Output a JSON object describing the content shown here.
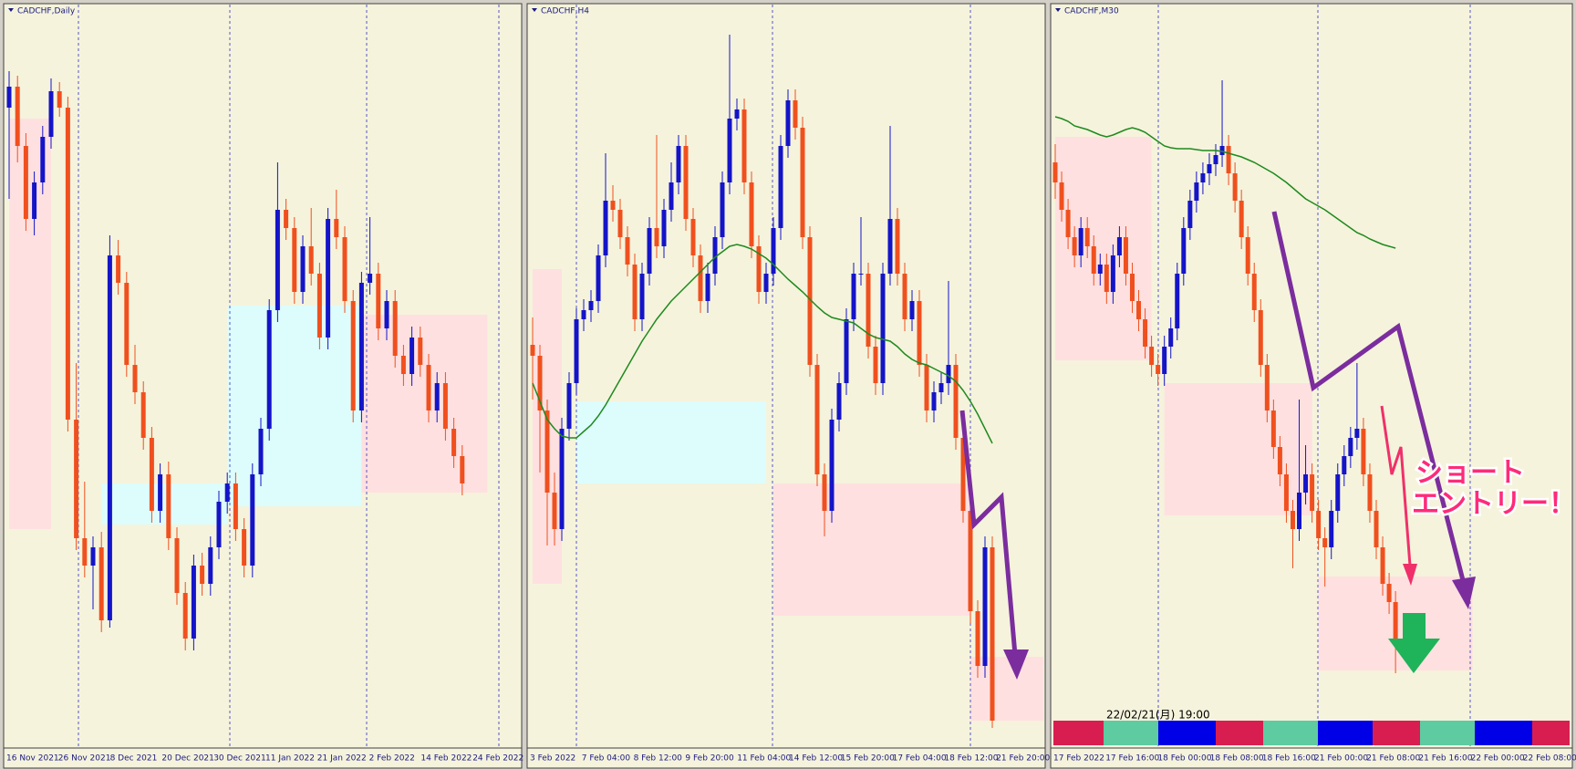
{
  "chart_data": [
    {
      "type": "candlestick",
      "title": "CADCHF,Daily",
      "ylim": [
        0,
        800
      ],
      "up_color": "#1414c8",
      "down_color": "#f0501e",
      "x_labels": [
        "16 Nov 2021",
        "26 Nov 2021",
        "8 Dec 2021",
        "20 Dec 2021",
        "30 Dec 2021",
        "11 Jan 2022",
        "21 Jan 2022",
        "2 Feb 2022",
        "14 Feb 2022",
        "24 Feb 2022"
      ],
      "zones": [
        {
          "start": 0,
          "end": 5,
          "low": 238,
          "high": 688,
          "color": "#ffe0e0"
        },
        {
          "start": 11,
          "end": 26,
          "low": 243,
          "high": 288,
          "color": "#ddfcfc"
        },
        {
          "start": 26,
          "end": 42,
          "low": 263,
          "high": 483,
          "color": "#ddfcfc"
        },
        {
          "start": 42,
          "end": 57,
          "low": 278,
          "high": 473,
          "color": "#ffe0e0"
        }
      ],
      "candles": [
        [
          700,
          740,
          600,
          723
        ],
        [
          723,
          735,
          640,
          658
        ],
        [
          658,
          672,
          565,
          578
        ],
        [
          578,
          630,
          560,
          618
        ],
        [
          618,
          680,
          605,
          668
        ],
        [
          668,
          732,
          655,
          718
        ],
        [
          718,
          728,
          690,
          700
        ],
        [
          700,
          712,
          345,
          358
        ],
        [
          358,
          420,
          215,
          228
        ],
        [
          228,
          290,
          185,
          198
        ],
        [
          198,
          230,
          150,
          218
        ],
        [
          218,
          235,
          125,
          138
        ],
        [
          138,
          560,
          130,
          538
        ],
        [
          538,
          555,
          495,
          508
        ],
        [
          508,
          520,
          405,
          418
        ],
        [
          418,
          440,
          375,
          388
        ],
        [
          388,
          400,
          325,
          338
        ],
        [
          338,
          350,
          245,
          258
        ],
        [
          258,
          310,
          245,
          298
        ],
        [
          298,
          312,
          215,
          228
        ],
        [
          228,
          240,
          155,
          168
        ],
        [
          168,
          180,
          105,
          118
        ],
        [
          118,
          210,
          105,
          198
        ],
        [
          198,
          212,
          165,
          178
        ],
        [
          178,
          230,
          165,
          218
        ],
        [
          218,
          280,
          205,
          268
        ],
        [
          268,
          300,
          255,
          288
        ],
        [
          288,
          300,
          225,
          238
        ],
        [
          238,
          250,
          185,
          198
        ],
        [
          198,
          310,
          185,
          298
        ],
        [
          298,
          360,
          285,
          348
        ],
        [
          348,
          490,
          335,
          478
        ],
        [
          478,
          640,
          465,
          588
        ],
        [
          588,
          600,
          555,
          568
        ],
        [
          568,
          580,
          485,
          498
        ],
        [
          498,
          560,
          485,
          548
        ],
        [
          548,
          590,
          505,
          518
        ],
        [
          518,
          530,
          435,
          448
        ],
        [
          448,
          590,
          435,
          578
        ],
        [
          578,
          610,
          545,
          558
        ],
        [
          558,
          570,
          475,
          488
        ],
        [
          488,
          500,
          355,
          368
        ],
        [
          368,
          520,
          355,
          508
        ],
        [
          508,
          580,
          495,
          518
        ],
        [
          518,
          530,
          445,
          458
        ],
        [
          458,
          500,
          445,
          488
        ],
        [
          488,
          500,
          415,
          428
        ],
        [
          428,
          440,
          395,
          408
        ],
        [
          408,
          460,
          395,
          448
        ],
        [
          448,
          460,
          405,
          418
        ],
        [
          418,
          430,
          355,
          368
        ],
        [
          368,
          410,
          355,
          398
        ],
        [
          398,
          410,
          335,
          348
        ],
        [
          348,
          360,
          305,
          318
        ],
        [
          318,
          330,
          275,
          288
        ]
      ]
    },
    {
      "type": "candlestick",
      "title": "CADCHF,H4",
      "ylim": [
        0,
        800
      ],
      "up_color": "#1414c8",
      "down_color": "#f0501e",
      "ma_color": "#1e8a1e",
      "x_labels": [
        "3 Feb 2022",
        "7 Feb 04:00",
        "8 Feb 12:00",
        "9 Feb 20:00",
        "11 Feb 04:00",
        "14 Feb 12:00",
        "15 Feb 20:00",
        "17 Feb 04:00",
        "18 Feb 12:00",
        "21 Feb 20:00"
      ],
      "zones": [
        {
          "start": 0,
          "end": 4,
          "low": 178,
          "high": 523,
          "color": "#ffe0e0"
        },
        {
          "start": 6,
          "end": 32,
          "low": 288,
          "high": 378,
          "color": "#ddfcfc"
        },
        {
          "start": 33,
          "end": 60,
          "low": 143,
          "high": 288,
          "color": "#ffe0e0"
        },
        {
          "start": 60,
          "end": 70,
          "low": 28,
          "high": 98,
          "color": "#ffe0e0"
        }
      ],
      "candles": [
        [
          440,
          470,
          380,
          428
        ],
        [
          428,
          440,
          300,
          368
        ],
        [
          368,
          380,
          220,
          278
        ],
        [
          278,
          300,
          220,
          238
        ],
        [
          238,
          360,
          225,
          348
        ],
        [
          348,
          410,
          335,
          398
        ],
        [
          398,
          480,
          385,
          468
        ],
        [
          468,
          490,
          455,
          478
        ],
        [
          478,
          500,
          465,
          488
        ],
        [
          488,
          550,
          475,
          538
        ],
        [
          538,
          650,
          525,
          598
        ],
        [
          598,
          615,
          575,
          588
        ],
        [
          588,
          600,
          545,
          558
        ],
        [
          558,
          570,
          515,
          528
        ],
        [
          528,
          540,
          455,
          468
        ],
        [
          468,
          530,
          455,
          518
        ],
        [
          518,
          580,
          505,
          568
        ],
        [
          568,
          670,
          535,
          548
        ],
        [
          548,
          600,
          535,
          588
        ],
        [
          588,
          640,
          575,
          618
        ],
        [
          618,
          670,
          605,
          658
        ],
        [
          658,
          670,
          565,
          578
        ],
        [
          578,
          590,
          525,
          538
        ],
        [
          538,
          550,
          475,
          488
        ],
        [
          488,
          530,
          475,
          518
        ],
        [
          518,
          570,
          505,
          558
        ],
        [
          558,
          630,
          545,
          618
        ],
        [
          618,
          780,
          605,
          688
        ],
        [
          688,
          710,
          675,
          698
        ],
        [
          698,
          710,
          605,
          618
        ],
        [
          618,
          630,
          535,
          548
        ],
        [
          548,
          560,
          485,
          498
        ],
        [
          498,
          530,
          485,
          518
        ],
        [
          518,
          580,
          505,
          568
        ],
        [
          568,
          670,
          555,
          658
        ],
        [
          658,
          720,
          645,
          708
        ],
        [
          708,
          720,
          665,
          678
        ],
        [
          678,
          690,
          545,
          558
        ],
        [
          558,
          570,
          405,
          418
        ],
        [
          418,
          430,
          285,
          298
        ],
        [
          298,
          310,
          230,
          258
        ],
        [
          258,
          370,
          245,
          358
        ],
        [
          358,
          410,
          345,
          398
        ],
        [
          398,
          480,
          385,
          468
        ],
        [
          468,
          530,
          455,
          518
        ],
        [
          518,
          580,
          505,
          518
        ],
        [
          518,
          530,
          425,
          438
        ],
        [
          438,
          450,
          385,
          398
        ],
        [
          398,
          530,
          385,
          518
        ],
        [
          518,
          680,
          505,
          578
        ],
        [
          578,
          590,
          505,
          518
        ],
        [
          518,
          530,
          455,
          468
        ],
        [
          468,
          500,
          455,
          488
        ],
        [
          488,
          500,
          405,
          418
        ],
        [
          418,
          430,
          355,
          368
        ],
        [
          368,
          400,
          355,
          388
        ],
        [
          388,
          410,
          375,
          398
        ],
        [
          398,
          510,
          385,
          418
        ],
        [
          418,
          430,
          325,
          338
        ],
        [
          338,
          350,
          245,
          258
        ],
        [
          258,
          270,
          135,
          148
        ],
        [
          148,
          160,
          75,
          88
        ],
        [
          88,
          230,
          75,
          218
        ],
        [
          218,
          230,
          20,
          28
        ]
      ],
      "ma": [
        398,
        378,
        358,
        348,
        340,
        338,
        338,
        345,
        352,
        362,
        374,
        388,
        402,
        416,
        430,
        444,
        456,
        468,
        478,
        488,
        496,
        504,
        512,
        520,
        528,
        536,
        542,
        548,
        550,
        548,
        545,
        540,
        535,
        528,
        520,
        512,
        505,
        498,
        490,
        482,
        475,
        470,
        468,
        466,
        464,
        458,
        452,
        448,
        446,
        444,
        438,
        430,
        424,
        420,
        418,
        414,
        410,
        406,
        400,
        390,
        378,
        364,
        348,
        332
      ]
    },
    {
      "type": "candlestick",
      "title": "CADCHF,M30",
      "ylim": [
        0,
        800
      ],
      "up_color": "#1414c8",
      "down_color": "#f0501e",
      "ma_color": "#1e8a1e",
      "x_labels": [
        "17 Feb 2022",
        "17 Feb 16:00",
        "18 Feb 00:00",
        "18 Feb 08:00",
        "18 Feb 16:00",
        "21 Feb 00:00",
        "21 Feb 08:00",
        "21 Feb 16:00",
        "22 Feb 00:00",
        "22 Feb 08:00"
      ],
      "zones": [
        {
          "start": 0,
          "end": 15,
          "low": 423,
          "high": 668,
          "color": "#ffe0e0"
        },
        {
          "start": 17,
          "end": 40,
          "low": 253,
          "high": 398,
          "color": "#ffe0e0"
        },
        {
          "start": 41,
          "end": 65,
          "low": 83,
          "high": 186,
          "color": "#ffe0e0"
        }
      ],
      "candles": [
        [
          640,
          660,
          600,
          618
        ],
        [
          618,
          630,
          575,
          588
        ],
        [
          588,
          600,
          545,
          558
        ],
        [
          558,
          570,
          525,
          538
        ],
        [
          538,
          580,
          525,
          568
        ],
        [
          568,
          580,
          535,
          548
        ],
        [
          548,
          560,
          505,
          518
        ],
        [
          518,
          540,
          505,
          528
        ],
        [
          528,
          540,
          485,
          498
        ],
        [
          498,
          550,
          485,
          538
        ],
        [
          538,
          570,
          525,
          558
        ],
        [
          558,
          570,
          505,
          518
        ],
        [
          518,
          530,
          475,
          488
        ],
        [
          488,
          500,
          455,
          468
        ],
        [
          468,
          480,
          425,
          438
        ],
        [
          438,
          450,
          405,
          418
        ],
        [
          418,
          430,
          395,
          408
        ],
        [
          408,
          450,
          395,
          438
        ],
        [
          438,
          470,
          425,
          458
        ],
        [
          458,
          530,
          445,
          518
        ],
        [
          518,
          580,
          505,
          568
        ],
        [
          568,
          610,
          555,
          598
        ],
        [
          598,
          630,
          585,
          618
        ],
        [
          618,
          640,
          605,
          628
        ],
        [
          628,
          650,
          615,
          638
        ],
        [
          638,
          660,
          625,
          648
        ],
        [
          648,
          730,
          635,
          658
        ],
        [
          658,
          670,
          615,
          628
        ],
        [
          628,
          640,
          585,
          598
        ],
        [
          598,
          610,
          545,
          558
        ],
        [
          558,
          570,
          505,
          518
        ],
        [
          518,
          530,
          465,
          478
        ],
        [
          478,
          490,
          405,
          418
        ],
        [
          418,
          430,
          355,
          368
        ],
        [
          368,
          380,
          315,
          328
        ],
        [
          328,
          340,
          285,
          298
        ],
        [
          298,
          310,
          245,
          258
        ],
        [
          258,
          270,
          195,
          238
        ],
        [
          238,
          380,
          225,
          278
        ],
        [
          278,
          330,
          265,
          298
        ],
        [
          298,
          310,
          245,
          258
        ],
        [
          258,
          270,
          215,
          228
        ],
        [
          228,
          240,
          175,
          218
        ],
        [
          218,
          270,
          205,
          258
        ],
        [
          258,
          310,
          245,
          298
        ],
        [
          298,
          330,
          285,
          318
        ],
        [
          318,
          350,
          305,
          338
        ],
        [
          338,
          420,
          325,
          348
        ],
        [
          348,
          360,
          285,
          298
        ],
        [
          298,
          310,
          245,
          258
        ],
        [
          258,
          270,
          205,
          218
        ],
        [
          218,
          230,
          165,
          178
        ],
        [
          178,
          190,
          145,
          158
        ],
        [
          158,
          170,
          80,
          118
        ]
      ],
      "ma": [
        690,
        688,
        685,
        680,
        678,
        676,
        673,
        670,
        668,
        670,
        673,
        676,
        678,
        676,
        673,
        668,
        663,
        658,
        656,
        655,
        655,
        655,
        654,
        653,
        653,
        653,
        652,
        650,
        648,
        646,
        643,
        640,
        636,
        632,
        628,
        623,
        618,
        612,
        606,
        600,
        596,
        592,
        588,
        583,
        578,
        573,
        568,
        563,
        560,
        556,
        553,
        550,
        548,
        546
      ],
      "timestamp": "22/02/21(月) 19:00",
      "annotation": [
        "ショート",
        "エントリー！"
      ]
    }
  ]
}
